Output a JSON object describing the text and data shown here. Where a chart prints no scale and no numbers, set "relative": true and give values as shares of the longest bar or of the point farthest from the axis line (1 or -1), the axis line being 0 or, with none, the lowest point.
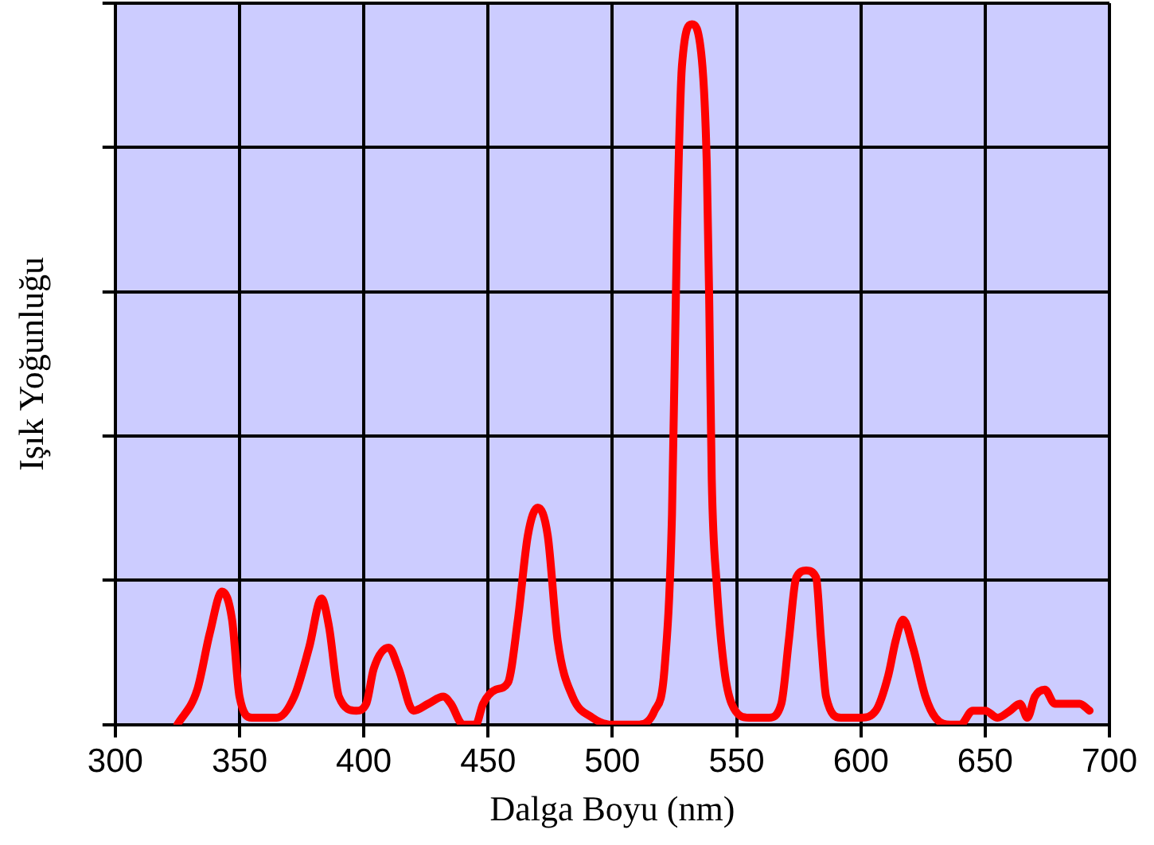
{
  "chart_data": {
    "type": "line",
    "xlabel": "Dalga Boyu (nm)",
    "ylabel": "Işık Yoğunluğu",
    "relative": true,
    "grid": true,
    "legend": false,
    "tick_labels": "x",
    "marker": "none",
    "line_style": "solid",
    "xlim": [
      300,
      700
    ],
    "xticks": [
      300,
      350,
      400,
      450,
      500,
      550,
      600,
      650,
      700
    ],
    "series": [
      {
        "color": "#ff0000",
        "x": [
          325,
          333,
          338,
          343,
          347,
          350,
          355,
          365,
          372,
          378,
          383,
          386,
          390,
          397,
          401,
          404,
          410,
          414,
          420,
          426,
          432,
          435,
          440,
          445,
          448,
          453,
          458,
          462,
          466,
          470,
          474,
          478,
          484,
          492,
          500,
          510,
          517,
          521,
          524,
          526,
          528,
          532,
          536,
          538,
          539,
          540,
          542,
          545,
          548,
          555,
          563,
          568,
          571,
          574,
          578,
          582,
          584,
          586,
          592,
          600,
          606,
          611,
          614,
          617,
          621,
          626,
          630,
          636,
          640,
          645,
          650,
          655,
          660,
          664,
          667,
          670,
          674,
          678,
          683,
          688,
          692
        ],
        "values": [
          0,
          0.05,
          0.13,
          0.19,
          0.15,
          0.04,
          0.01,
          0.01,
          0.04,
          0.11,
          0.18,
          0.14,
          0.04,
          0.02,
          0.03,
          0.08,
          0.11,
          0.08,
          0.02,
          0.03,
          0.04,
          0.03,
          0,
          0,
          0.03,
          0.05,
          0.06,
          0.15,
          0.27,
          0.31,
          0.27,
          0.12,
          0.04,
          0.01,
          0,
          0,
          0.02,
          0.08,
          0.3,
          0.7,
          0.94,
          1.0,
          0.95,
          0.8,
          0.6,
          0.35,
          0.2,
          0.08,
          0.03,
          0.01,
          0.01,
          0.03,
          0.12,
          0.21,
          0.22,
          0.21,
          0.12,
          0.04,
          0.01,
          0.01,
          0.02,
          0.07,
          0.12,
          0.15,
          0.11,
          0.04,
          0.01,
          0,
          0,
          0.02,
          0.02,
          0.01,
          0.02,
          0.03,
          0.01,
          0.04,
          0.05,
          0.03,
          0.03,
          0.03,
          0.02
        ]
      }
    ]
  }
}
